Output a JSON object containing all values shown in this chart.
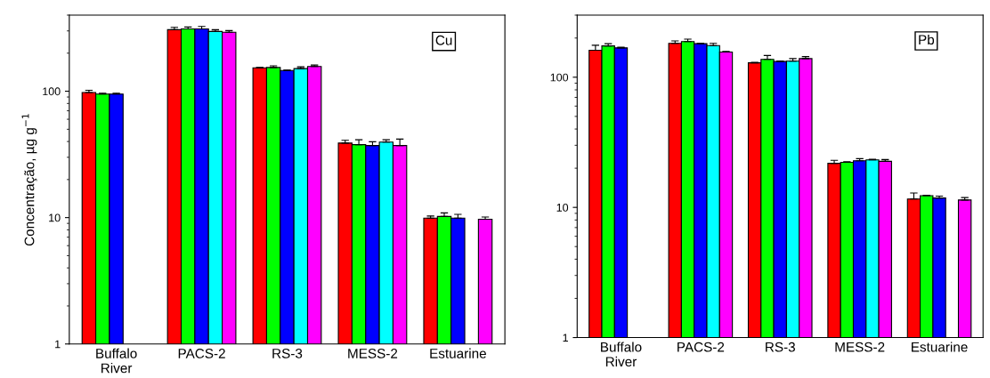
{
  "chart_data": [
    {
      "type": "bar",
      "ylabel": "Concentração, µg g$^{−1}$",
      "annotations": [
        "Cu"
      ],
      "log": "y",
      "ylim": [
        1,
        400
      ],
      "yticks": [
        1,
        10,
        100
      ],
      "grid": false,
      "legend": false,
      "categories": [
        "Buffalo\nRiver",
        "PACS-2",
        "RS-3",
        "MESS-2",
        "Estuarine"
      ],
      "series": [
        {
          "color": "#ff0000",
          "values": [
            97.7,
            307,
            153,
            38.9,
            9.9
          ],
          "errors": [
            4,
            13,
            1,
            2,
            0.4
          ]
        },
        {
          "color": "#00ff00",
          "values": [
            95,
            311,
            154,
            37.8,
            10.2
          ],
          "errors": [
            1.5,
            11,
            5,
            3.5,
            0.7
          ]
        },
        {
          "color": "#0000ff",
          "values": [
            95,
            311,
            146,
            37.2,
            9.9
          ],
          "errors": [
            1.5,
            14,
            1,
            2.6,
            0.7
          ]
        },
        {
          "color": "#00ffff",
          "values": [
            null,
            297,
            151,
            39.6,
            null
          ],
          "errors": [
            null,
            10,
            5,
            1.7,
            null
          ]
        },
        {
          "color": "#ff00ff",
          "values": [
            null,
            293,
            157,
            37.2,
            9.7
          ],
          "errors": [
            null,
            9,
            4,
            4.6,
            0.4
          ]
        }
      ]
    },
    {
      "type": "bar",
      "annotations": [
        "Pb"
      ],
      "log": "y",
      "ylim": [
        1,
        300
      ],
      "yticks": [
        1,
        10,
        100
      ],
      "grid": false,
      "legend": false,
      "categories": [
        "Buffalo\nRiver",
        "PACS-2",
        "RS-3",
        "MESS-2",
        "Estuarine"
      ],
      "series": [
        {
          "color": "#ff0000",
          "values": [
            161,
            182,
            129,
            21.8,
            11.6
          ],
          "errors": [
            15,
            8,
            1,
            1.2,
            1.3
          ]
        },
        {
          "color": "#00ff00",
          "values": [
            174,
            188,
            137,
            22.2,
            12.3
          ],
          "errors": [
            7,
            8,
            10,
            0.2,
            0.1
          ]
        },
        {
          "color": "#0000ff",
          "values": [
            168,
            181,
            132,
            22.8,
            11.8
          ],
          "errors": [
            2,
            1,
            1,
            0.9,
            0.4
          ]
        },
        {
          "color": "#00ffff",
          "values": [
            null,
            175,
            133,
            23.2,
            null
          ],
          "errors": [
            null,
            7,
            6,
            0.2,
            null
          ]
        },
        {
          "color": "#ff00ff",
          "values": [
            null,
            156,
            139,
            22.6,
            11.4
          ],
          "errors": [
            null,
            2,
            5,
            0.7,
            0.5
          ]
        }
      ]
    }
  ]
}
